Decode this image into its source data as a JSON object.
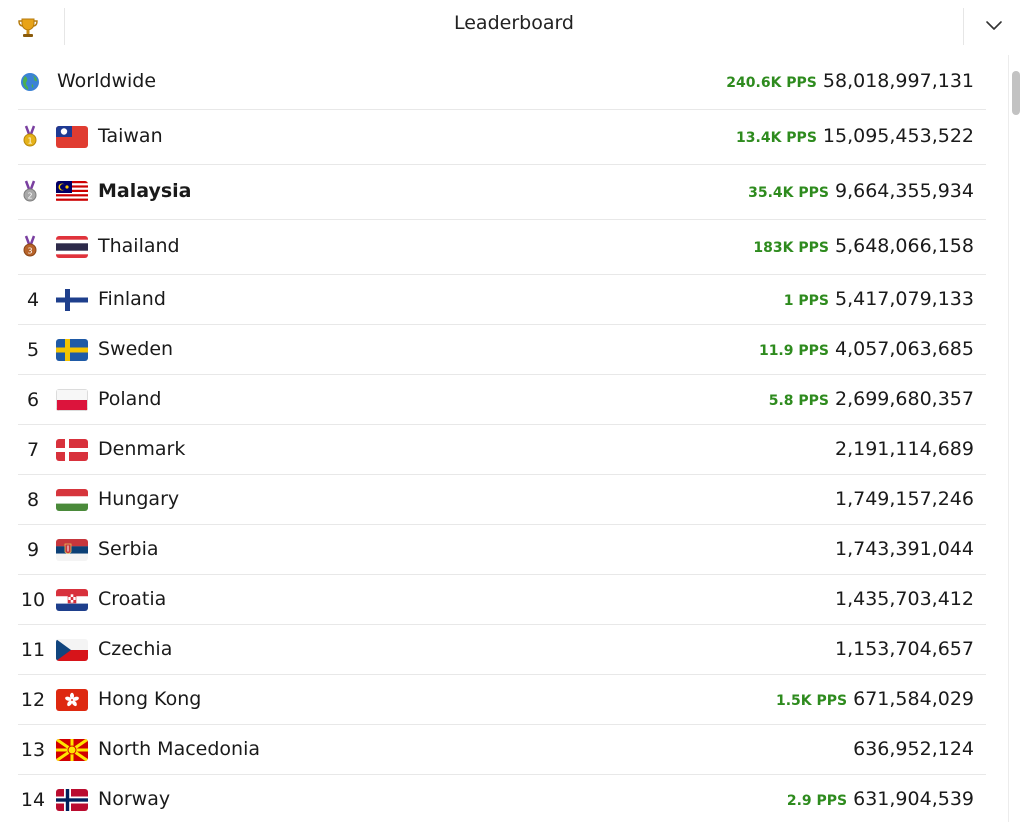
{
  "header": {
    "title": "Leaderboard"
  },
  "worldwide": {
    "label": "Worldwide",
    "pps": "240.6K PPS",
    "score": "58,018,997,131"
  },
  "entries": [
    {
      "rank": "1",
      "country": "Taiwan",
      "pps": "13.4K PPS",
      "score": "15,095,453,522",
      "medal": "gold"
    },
    {
      "rank": "2",
      "country": "Malaysia",
      "pps": "35.4K PPS",
      "score": "9,664,355,934",
      "medal": "silver",
      "highlighted": true
    },
    {
      "rank": "3",
      "country": "Thailand",
      "pps": "183K PPS",
      "score": "5,648,066,158",
      "medal": "bronze"
    },
    {
      "rank": "4",
      "country": "Finland",
      "pps": "1 PPS",
      "score": "5,417,079,133"
    },
    {
      "rank": "5",
      "country": "Sweden",
      "pps": "11.9 PPS",
      "score": "4,057,063,685"
    },
    {
      "rank": "6",
      "country": "Poland",
      "pps": "5.8 PPS",
      "score": "2,699,680,357"
    },
    {
      "rank": "7",
      "country": "Denmark",
      "pps": "",
      "score": "2,191,114,689"
    },
    {
      "rank": "8",
      "country": "Hungary",
      "pps": "",
      "score": "1,749,157,246"
    },
    {
      "rank": "9",
      "country": "Serbia",
      "pps": "",
      "score": "1,743,391,044"
    },
    {
      "rank": "10",
      "country": "Croatia",
      "pps": "",
      "score": "1,435,703,412"
    },
    {
      "rank": "11",
      "country": "Czechia",
      "pps": "",
      "score": "1,153,704,657"
    },
    {
      "rank": "12",
      "country": "Hong Kong",
      "pps": "1.5K PPS",
      "score": "671,584,029"
    },
    {
      "rank": "13",
      "country": "North Macedonia",
      "pps": "",
      "score": "636,952,124"
    },
    {
      "rank": "14",
      "country": "Norway",
      "pps": "2.9 PPS",
      "score": "631,904,539"
    }
  ],
  "colors": {
    "pps_green": "#2e8b1e",
    "divider": "#e8e8e8"
  }
}
